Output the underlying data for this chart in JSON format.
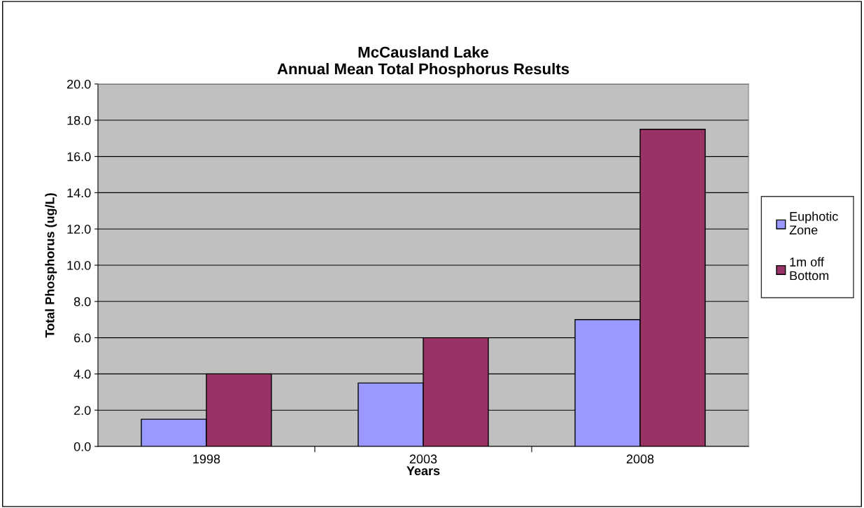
{
  "chart_data": {
    "type": "bar",
    "title": "McCausland Lake\nAnnual Mean Total Phosphorus Results",
    "xlabel": "Years",
    "ylabel": "Total Phosphorus (ug/L)",
    "categories": [
      "1998",
      "2003",
      "2008"
    ],
    "series": [
      {
        "name": "Euphotic\nZone",
        "color": "#9999ff",
        "values": [
          1.5,
          3.5,
          7.0
        ]
      },
      {
        "name": "1m off\nBottom",
        "color": "#993366",
        "values": [
          4.0,
          6.0,
          17.5
        ]
      }
    ],
    "ylim": [
      0,
      20
    ],
    "yticks": [
      {
        "value": 0,
        "label": "0.0"
      },
      {
        "value": 2,
        "label": "2.0"
      },
      {
        "value": 4,
        "label": "4.0"
      },
      {
        "value": 6,
        "label": "6.0"
      },
      {
        "value": 8,
        "label": "8.0"
      },
      {
        "value": 10,
        "label": "10.0"
      },
      {
        "value": 12,
        "label": "12.0"
      },
      {
        "value": 14,
        "label": "14.0"
      },
      {
        "value": 16,
        "label": "16.0"
      },
      {
        "value": 18,
        "label": "18.0"
      },
      {
        "value": 20,
        "label": "20.0"
      }
    ],
    "grid": "y",
    "legend": "right"
  }
}
